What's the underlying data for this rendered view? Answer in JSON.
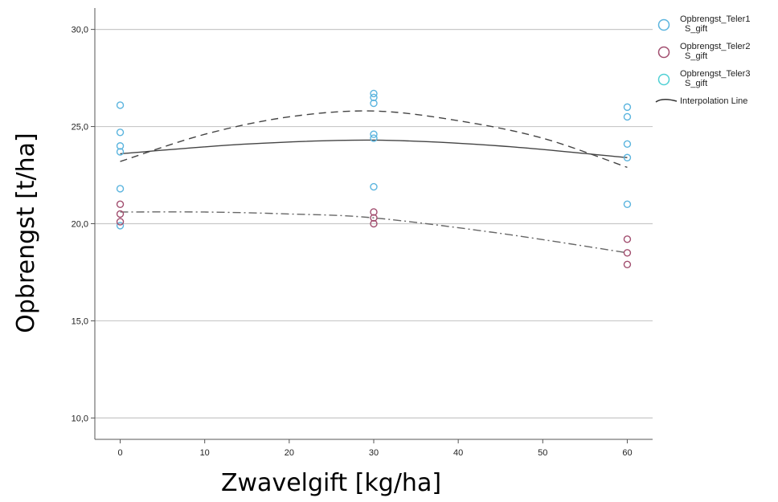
{
  "chart_data": {
    "type": "scatter",
    "title": "",
    "xlabel": "Zwavelgift [kg/ha]",
    "ylabel": "Opbrengst [t/ha]",
    "xlim": [
      -3,
      63
    ],
    "ylim": [
      8.9,
      31.1
    ],
    "x_ticks": [
      0,
      10,
      20,
      30,
      40,
      50,
      60
    ],
    "x_tick_labels": [
      "0",
      "10",
      "20",
      "30",
      "40",
      "50",
      "60"
    ],
    "y_ticks": [
      10,
      15,
      20,
      25,
      30
    ],
    "y_tick_labels": [
      "10,0",
      "15,0",
      "20,0",
      "25,0",
      "30,0"
    ],
    "grid": "horizontal",
    "legend_position": "right",
    "series": [
      {
        "name": "Opbrengst_Teler1 S_gift",
        "color": "#5ab4de",
        "points": [
          [
            0,
            26.1
          ],
          [
            0,
            24.7
          ],
          [
            0,
            24.0
          ],
          [
            0,
            23.7
          ],
          [
            0,
            21.8
          ],
          [
            0,
            19.9
          ],
          [
            30,
            26.7
          ],
          [
            30,
            26.5
          ],
          [
            30,
            26.2
          ],
          [
            30,
            24.6
          ],
          [
            30,
            24.4
          ],
          [
            30,
            21.9
          ],
          [
            60,
            26.0
          ],
          [
            60,
            25.5
          ],
          [
            60,
            24.1
          ],
          [
            60,
            23.4
          ],
          [
            60,
            21.0
          ]
        ],
        "fit": [
          [
            0,
            23.6
          ],
          [
            15,
            24.1
          ],
          [
            30,
            24.3
          ],
          [
            45,
            24.0
          ],
          [
            60,
            23.4
          ]
        ],
        "fit_style": "solid"
      },
      {
        "name": "Opbrengst_Teler2 S_gift",
        "color": "#a14d6e",
        "points": [
          [
            0,
            21.0
          ],
          [
            0,
            20.5
          ],
          [
            0,
            20.1
          ],
          [
            30,
            20.6
          ],
          [
            30,
            20.3
          ],
          [
            30,
            20.0
          ],
          [
            60,
            19.2
          ],
          [
            60,
            18.5
          ],
          [
            60,
            17.9
          ]
        ],
        "fit": [
          [
            0,
            20.6
          ],
          [
            10,
            20.6
          ],
          [
            20,
            20.5
          ],
          [
            30,
            20.3
          ],
          [
            45,
            19.5
          ],
          [
            60,
            18.5
          ]
        ],
        "fit_style": "dashdot"
      },
      {
        "name": "Opbrengst_Teler3 S_gift",
        "color": "#4fd0d4",
        "points": [],
        "fit": [
          [
            0,
            23.2
          ],
          [
            10,
            24.6
          ],
          [
            20,
            25.5
          ],
          [
            30,
            25.8
          ],
          [
            40,
            25.3
          ],
          [
            50,
            24.4
          ],
          [
            60,
            22.9
          ]
        ],
        "fit_style": "dashed"
      }
    ],
    "legend": [
      {
        "line1": "Opbrengst_Teler1",
        "line2": "S_gift",
        "color": "#5ab4de",
        "marker": "circle"
      },
      {
        "line1": "Opbrengst_Teler2",
        "line2": "S_gift",
        "color": "#a14d6e",
        "marker": "circle"
      },
      {
        "line1": "Opbrengst_Teler3",
        "line2": "S_gift",
        "color": "#4fd0d4",
        "marker": "circle"
      },
      {
        "line1": "Interpolation Line",
        "line2": "",
        "color": "#333333",
        "marker": "line"
      }
    ]
  }
}
